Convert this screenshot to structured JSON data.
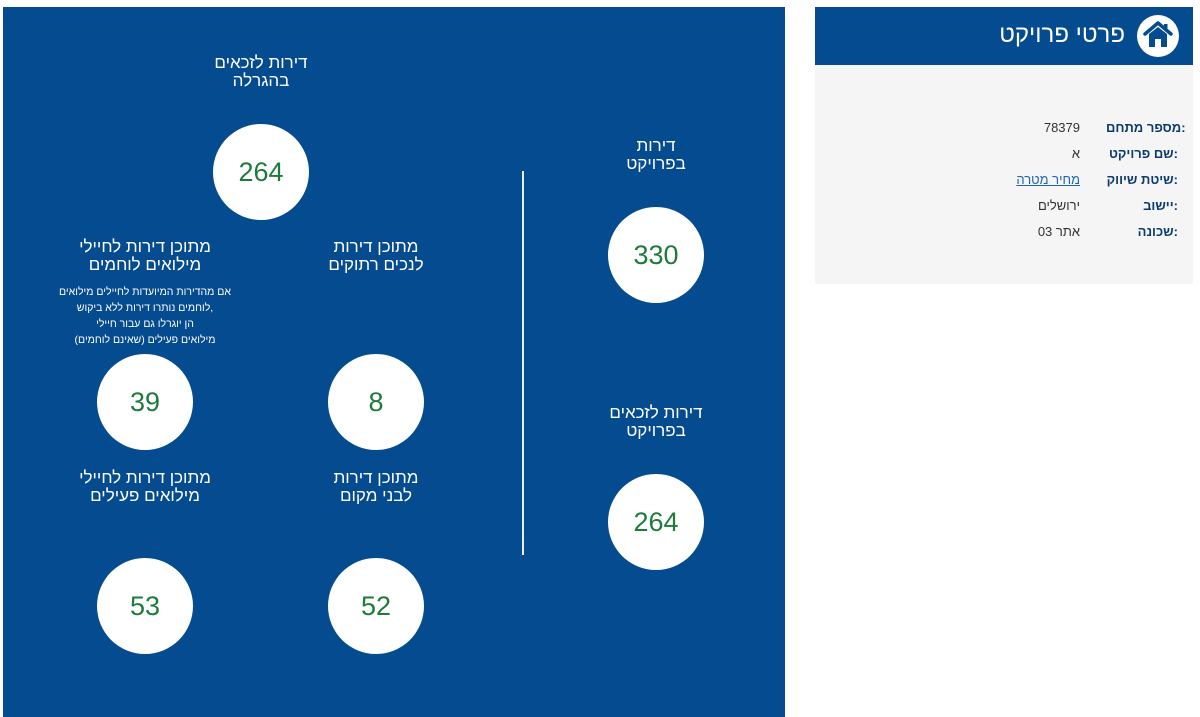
{
  "stats": {
    "apartments_in_project": {
      "label_line1": "דירות",
      "label_line2": "בפרויקט",
      "value": "330"
    },
    "winners_in_project": {
      "label_line1": "דירות לזכאים",
      "label_line2": "בפרויקט",
      "value": "264"
    },
    "winners_in_lottery": {
      "label_line1": "דירות לזכאים",
      "label_line2": "בהגרלה",
      "value": "264"
    },
    "disabled": {
      "label_line1": "מתוכן דירות",
      "label_line2": "לנכים רתוקים",
      "value": "8"
    },
    "combat_reservists": {
      "label_line1": "מתוכן דירות לחיילי",
      "label_line2": "מילואים לוחמים",
      "note_lines": [
        "אם מהדירות המיועדות לחיילים מילואים",
        "לוחמים נותרו דירות ללא ביקוש,",
        "הן יוגרלו גם עבור חיילי",
        "מילואים פעילים (שאינם לוחמים)"
      ],
      "value": "39"
    },
    "locals": {
      "label_line1": "מתוכן דירות",
      "label_line2": "לבני מקום",
      "value": "52"
    },
    "active_reservists": {
      "label_line1": "מתוכן דירות לחיילי",
      "label_line2": "מילואים פעילים",
      "value": "53"
    }
  },
  "details": {
    "title": "פרטי פרויקט",
    "icon": "house-icon",
    "rows": [
      {
        "key": "מספר מתחם:",
        "value": "78379"
      },
      {
        "key": "שם פרויקט:",
        "value": "א"
      },
      {
        "key": "שיטת שיווק:",
        "value": "מחיר מטרה"
      },
      {
        "key": "יישוב:",
        "value": "ירושלים"
      },
      {
        "key": "שכונה:",
        "value": "אתר 03"
      }
    ]
  },
  "colors": {
    "panel": "#054b8f",
    "number": "#1d7b3c",
    "link": "#1e64b4"
  }
}
